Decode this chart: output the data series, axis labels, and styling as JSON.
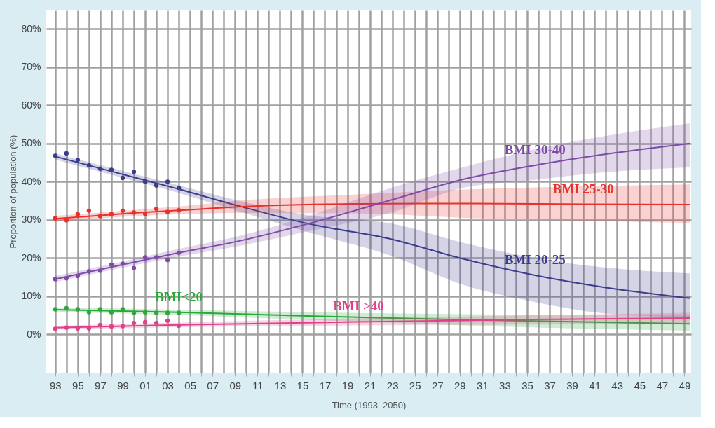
{
  "chart_data": {
    "type": "line",
    "xlabel": "Time (1993–2050)",
    "ylabel": "Proportion of population (%)",
    "xlim": [
      1992.2,
      2049.6
    ],
    "ylim": [
      -10,
      85
    ],
    "xticks": [
      {
        "value": 1993,
        "label": "93"
      },
      {
        "value": 1994,
        "label": null
      },
      {
        "value": 1995,
        "label": "95"
      },
      {
        "value": 1996,
        "label": null
      },
      {
        "value": 1997,
        "label": "97"
      },
      {
        "value": 1998,
        "label": null
      },
      {
        "value": 1999,
        "label": "99"
      },
      {
        "value": 2000,
        "label": null
      },
      {
        "value": 2001,
        "label": "01"
      },
      {
        "value": 2002,
        "label": null
      },
      {
        "value": 2003,
        "label": "03"
      },
      {
        "value": 2004,
        "label": null
      },
      {
        "value": 2005,
        "label": "05"
      },
      {
        "value": 2006,
        "label": null
      },
      {
        "value": 2007,
        "label": "07"
      },
      {
        "value": 2008,
        "label": null
      },
      {
        "value": 2009,
        "label": "09"
      },
      {
        "value": 2010,
        "label": null
      },
      {
        "value": 2011,
        "label": "11"
      },
      {
        "value": 2012,
        "label": null
      },
      {
        "value": 2013,
        "label": "13"
      },
      {
        "value": 2014,
        "label": null
      },
      {
        "value": 2015,
        "label": "15"
      },
      {
        "value": 2016,
        "label": null
      },
      {
        "value": 2017,
        "label": "17"
      },
      {
        "value": 2018,
        "label": null
      },
      {
        "value": 2019,
        "label": "19"
      },
      {
        "value": 2020,
        "label": null
      },
      {
        "value": 2021,
        "label": "21"
      },
      {
        "value": 2022,
        "label": null
      },
      {
        "value": 2023,
        "label": "23"
      },
      {
        "value": 2024,
        "label": null
      },
      {
        "value": 2025,
        "label": "25"
      },
      {
        "value": 2026,
        "label": null
      },
      {
        "value": 2027,
        "label": "27"
      },
      {
        "value": 2028,
        "label": null
      },
      {
        "value": 2029,
        "label": "29"
      },
      {
        "value": 2030,
        "label": null
      },
      {
        "value": 2031,
        "label": "31"
      },
      {
        "value": 2032,
        "label": null
      },
      {
        "value": 2033,
        "label": "33"
      },
      {
        "value": 2034,
        "label": null
      },
      {
        "value": 2035,
        "label": "35"
      },
      {
        "value": 2036,
        "label": null
      },
      {
        "value": 2037,
        "label": "37"
      },
      {
        "value": 2038,
        "label": null
      },
      {
        "value": 2039,
        "label": "39"
      },
      {
        "value": 2040,
        "label": null
      },
      {
        "value": 2041,
        "label": "41"
      },
      {
        "value": 2042,
        "label": null
      },
      {
        "value": 2043,
        "label": "43"
      },
      {
        "value": 2044,
        "label": null
      },
      {
        "value": 2045,
        "label": "45"
      },
      {
        "value": 2046,
        "label": null
      },
      {
        "value": 2047,
        "label": "47"
      },
      {
        "value": 2048,
        "label": null
      },
      {
        "value": 2049,
        "label": "49"
      }
    ],
    "yticks": [
      {
        "value": 0,
        "label": "0%"
      },
      {
        "value": 10,
        "label": "10%"
      },
      {
        "value": 20,
        "label": "20%"
      },
      {
        "value": 30,
        "label": "30%"
      },
      {
        "value": 40,
        "label": "40%"
      },
      {
        "value": 50,
        "label": "50%"
      },
      {
        "value": 60,
        "label": "60%"
      },
      {
        "value": 70,
        "label": "70%"
      },
      {
        "value": 80,
        "label": "80%"
      }
    ],
    "grid": true,
    "line_style": "solid",
    "series": [
      {
        "color": "#3a3d8c",
        "x": [
          1993,
          1998,
          2003.7,
          2009.4,
          2015.5,
          2023,
          2029.3,
          2035.7,
          2042,
          2049.5
        ],
        "values": [
          46.6,
          42.7,
          38.3,
          33.6,
          29,
          24.9,
          19.8,
          15.5,
          12.3,
          9.5
        ],
        "lower": [
          45.8,
          41.8,
          37.3,
          32.2,
          26.8,
          20.5,
          13,
          8.5,
          5.5,
          4.5
        ],
        "upper": [
          47.4,
          43.6,
          39.3,
          35,
          31.2,
          29,
          24,
          20,
          17.5,
          16
        ]
      },
      {
        "color": "#e8302c",
        "x": [
          1993,
          2000,
          2004,
          2010,
          2020,
          2030,
          2040,
          2049.5
        ],
        "values": [
          30.3,
          31.8,
          32.5,
          33.5,
          34.2,
          34.3,
          34.1,
          34
        ],
        "lower": [
          29.5,
          31,
          31.5,
          31.8,
          31.7,
          30.5,
          29.8,
          29.2
        ],
        "upper": [
          31.1,
          32.6,
          33.5,
          35.2,
          36.7,
          38,
          38.8,
          39.3
        ]
      },
      {
        "color": "#7e4aa8",
        "x": [
          1993,
          1999,
          2004,
          2009.4,
          2015.5,
          2023,
          2029.3,
          2035.7,
          2042,
          2049.5
        ],
        "values": [
          14.5,
          18.3,
          21.4,
          24.5,
          29,
          35.3,
          40.6,
          44.3,
          47.2,
          50
        ],
        "lower": [
          13.7,
          17.5,
          20.4,
          23.2,
          27,
          32,
          38.4,
          40.5,
          42.5,
          43.8
        ],
        "upper": [
          15.3,
          19.1,
          22.4,
          25.8,
          31,
          38.5,
          43.8,
          48.5,
          52,
          55.3
        ]
      },
      {
        "color": "#2aa83a",
        "x": [
          1993,
          2004,
          2016,
          2030,
          2049.5
        ],
        "values": [
          6.5,
          5.8,
          4.8,
          3.8,
          2.8
        ],
        "lower": [
          5.9,
          5.1,
          3.8,
          2.3,
          1
        ],
        "upper": [
          7.1,
          6.5,
          5.8,
          5.3,
          5
        ]
      },
      {
        "color": "#e0408a",
        "x": [
          1993,
          2004,
          2020,
          2035,
          2049.5
        ],
        "values": [
          1.8,
          2.5,
          3.3,
          3.9,
          4.3
        ],
        "lower": [
          1.3,
          1.9,
          2.4,
          2.6,
          2.8
        ],
        "upper": [
          2.3,
          3.1,
          4.2,
          5,
          5.7
        ]
      },
      {
        "type": "scatter",
        "marker": "circle",
        "color": "#3a3d8c",
        "x": [
          1993,
          1994,
          1995,
          1996,
          1997,
          1998,
          1999,
          2000,
          2001,
          2002,
          2003,
          2004
        ],
        "values": [
          46.8,
          47.4,
          45.7,
          44.3,
          43.4,
          43.1,
          41,
          42.6,
          40,
          39,
          40,
          38.4
        ]
      },
      {
        "type": "scatter",
        "marker": "circle",
        "color": "#e8302c",
        "x": [
          1993,
          1994,
          1995,
          1996,
          1997,
          1998,
          1999,
          2000,
          2001,
          2002,
          2003,
          2004
        ],
        "values": [
          30.4,
          29.9,
          31.5,
          32.4,
          31,
          31.5,
          32.4,
          31.9,
          31.6,
          32.9,
          32.1,
          32.5
        ]
      },
      {
        "type": "scatter",
        "marker": "circle",
        "color": "#7e4aa8",
        "x": [
          1993,
          1994,
          1995,
          1996,
          1997,
          1998,
          1999,
          2000,
          2001,
          2002,
          2003,
          2004
        ],
        "values": [
          14.5,
          14.7,
          15.3,
          16.5,
          16.7,
          18.3,
          18.5,
          17.4,
          20.2,
          20.2,
          19.5,
          21.4
        ]
      },
      {
        "type": "scatter",
        "marker": "circle",
        "color": "#2aa83a",
        "x": [
          1993,
          1994,
          1995,
          1996,
          1997,
          1998,
          1999,
          2000,
          2001,
          2002,
          2003,
          2004
        ],
        "values": [
          6.6,
          6.9,
          6.6,
          5.8,
          6.6,
          5.8,
          6.6,
          5.7,
          5.8,
          5.7,
          5.7,
          5.7
        ]
      },
      {
        "type": "scatter",
        "marker": "circle",
        "color": "#e0408a",
        "x": [
          1993,
          1994,
          1995,
          1996,
          1997,
          1998,
          1999,
          2000,
          2001,
          2002,
          2003,
          2004
        ],
        "values": [
          1.5,
          1.8,
          1.6,
          1.6,
          2.5,
          2.1,
          2.2,
          3.0,
          3.2,
          3.0,
          3.6,
          2.3
        ]
      }
    ],
    "annotations": [
      {
        "text": "BMI 20-25",
        "x": 2035.7,
        "y": 15.5
      },
      {
        "text": "BMI 25-30",
        "x": 2040,
        "y": 34.1
      },
      {
        "text": "BMI 30-40",
        "x": 2035.7,
        "y": 44.3
      },
      {
        "text": "BMI<20",
        "x": 2004,
        "y": 5.8
      },
      {
        "text": "BMI >40",
        "x": 2020,
        "y": 3.3
      }
    ]
  }
}
